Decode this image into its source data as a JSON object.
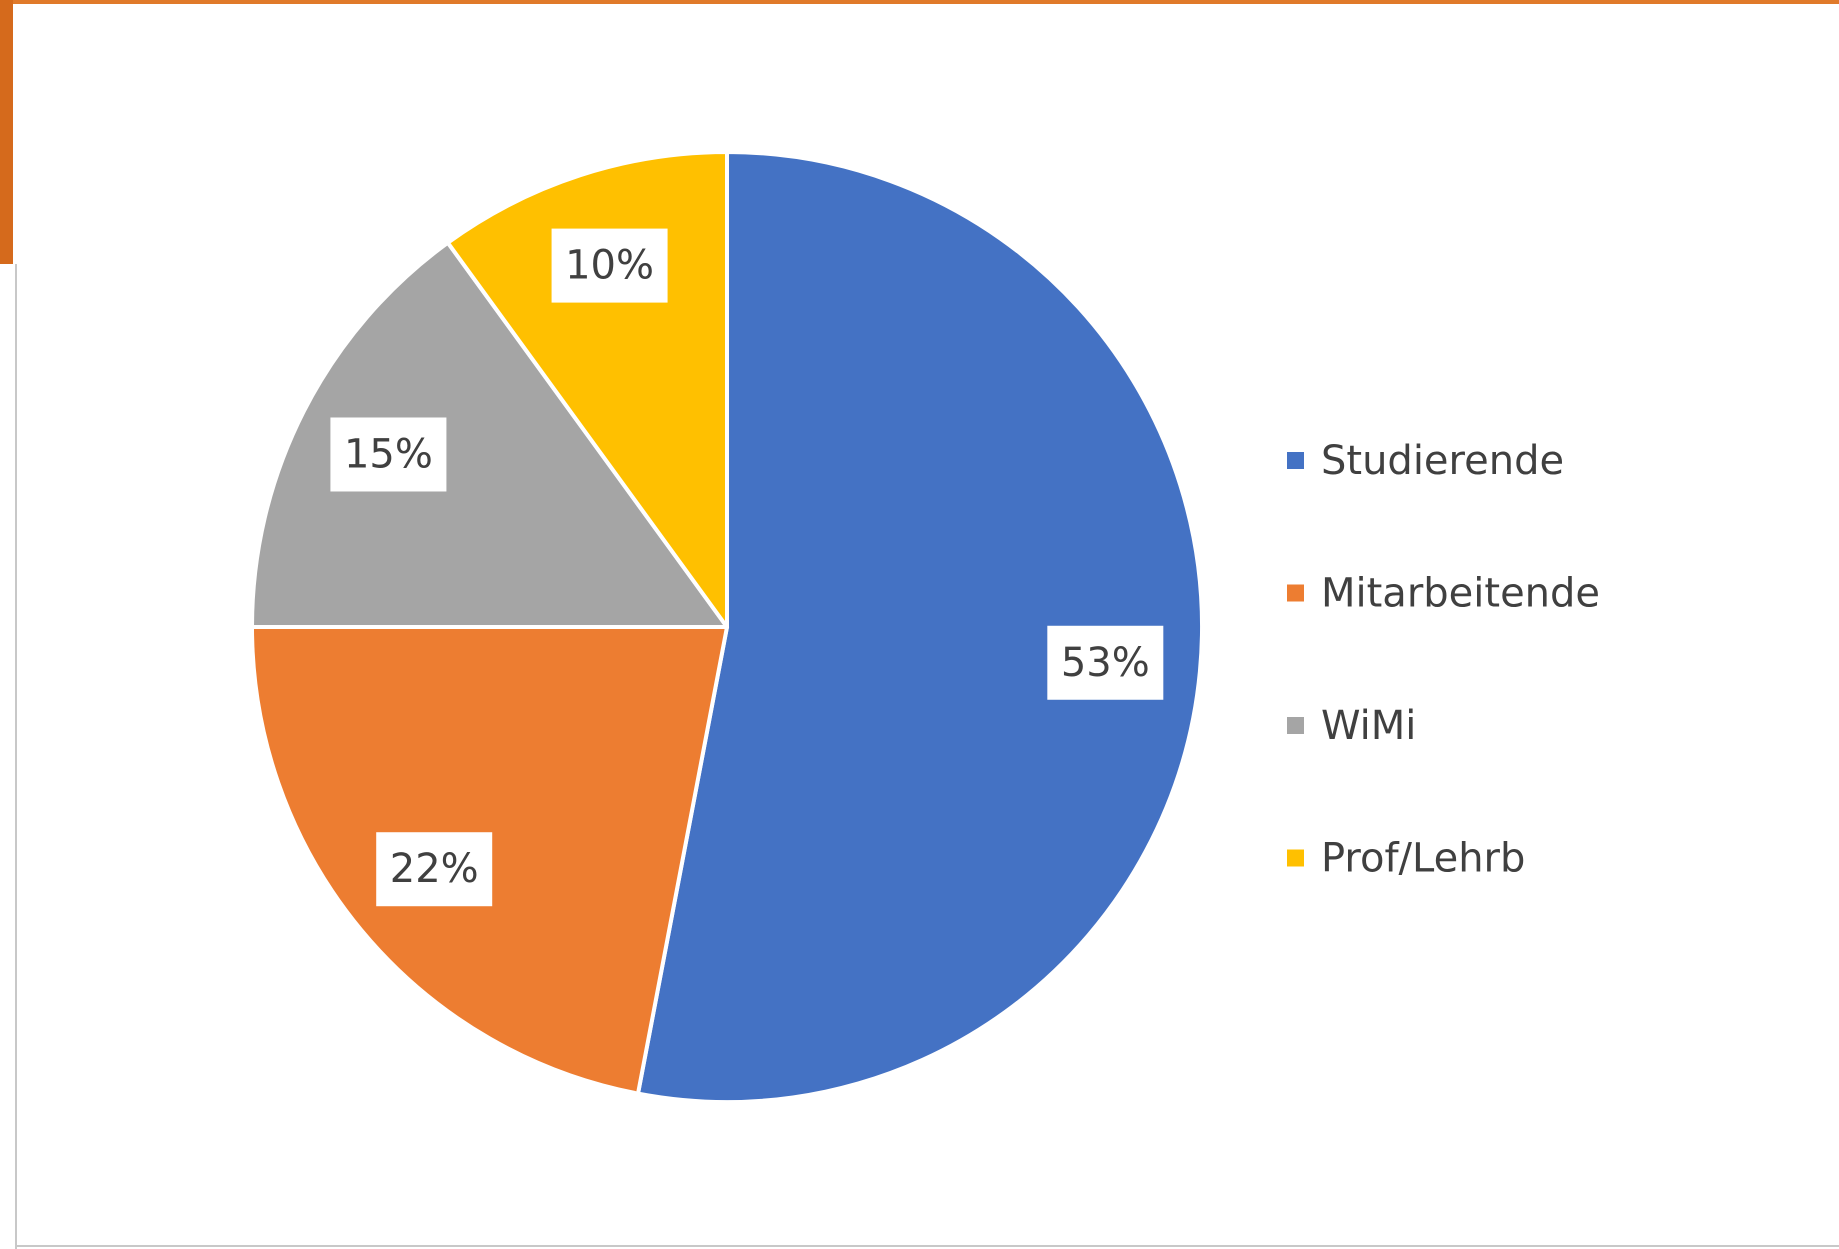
{
  "chart_data": {
    "type": "pie",
    "categories": [
      "Studierende",
      "Mitarbeitende",
      "WiMi",
      "Prof/Lehrb"
    ],
    "values": [
      53,
      22,
      15,
      10
    ],
    "value_labels": [
      "53%",
      "22%",
      "15%",
      "10%"
    ],
    "colors": [
      "#4472c4",
      "#ed7d31",
      "#a5a5a5",
      "#ffc000"
    ],
    "legend": "right"
  }
}
